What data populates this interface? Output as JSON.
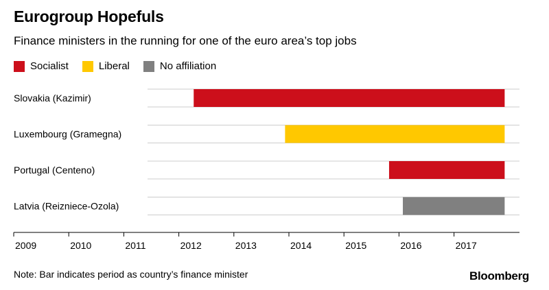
{
  "title": "Eurogroup Hopefuls",
  "subtitle": "Finance ministers in the running for one of the euro area’s top jobs",
  "note": "Note: Bar indicates period as country’s finance minister",
  "brand": "Bloomberg",
  "legend": [
    {
      "label": "Socialist",
      "color": "#cc0f1b"
    },
    {
      "label": "Liberal",
      "color": "#ffc800"
    },
    {
      "label": "No affiliation",
      "color": "#808080"
    }
  ],
  "chart_data": {
    "type": "bar",
    "orientation": "horizontal",
    "title": "Eurogroup Hopefuls",
    "subtitle": "Finance ministers in the running for one of the euro area’s top jobs",
    "xlim": [
      2009,
      2018.0
    ],
    "x_ticks": [
      "2009",
      "2010",
      "2011",
      "2012",
      "2013",
      "2014",
      "2015",
      "2016",
      "2017"
    ],
    "legend_position": "top-left",
    "grid": true,
    "rows": [
      {
        "label": "Slovakia (Kazimir)",
        "start": 2012.27,
        "end": 2017.92,
        "affiliation": "Socialist",
        "color": "#cc0f1b"
      },
      {
        "label": "Luxembourg (Gramegna)",
        "start": 2013.93,
        "end": 2017.92,
        "affiliation": "Liberal",
        "color": "#ffc800"
      },
      {
        "label": "Portugal (Centeno)",
        "start": 2015.82,
        "end": 2017.92,
        "affiliation": "Socialist",
        "color": "#cc0f1b"
      },
      {
        "label": "Latvia (Reizniece-Ozola)",
        "start": 2016.07,
        "end": 2017.92,
        "affiliation": "No affiliation",
        "color": "#808080"
      }
    ]
  }
}
